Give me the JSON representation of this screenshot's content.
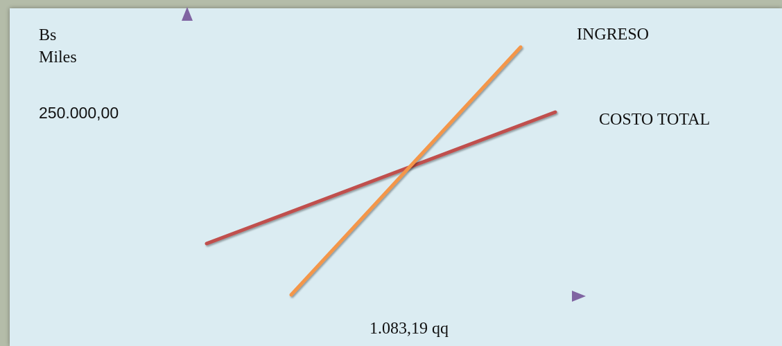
{
  "chart_data": {
    "type": "line",
    "ylabel_lines": [
      "Bs",
      "Miles"
    ],
    "y_reference_label": "250.000,00",
    "x_reference_label": "1.083,19 qq",
    "series": [
      {
        "name": "INGRESO",
        "color": "#f4964a"
      },
      {
        "name": "COSTO TOTAL",
        "color": "#c0504d"
      }
    ],
    "axis_color": "#8064a2",
    "grid": false
  }
}
